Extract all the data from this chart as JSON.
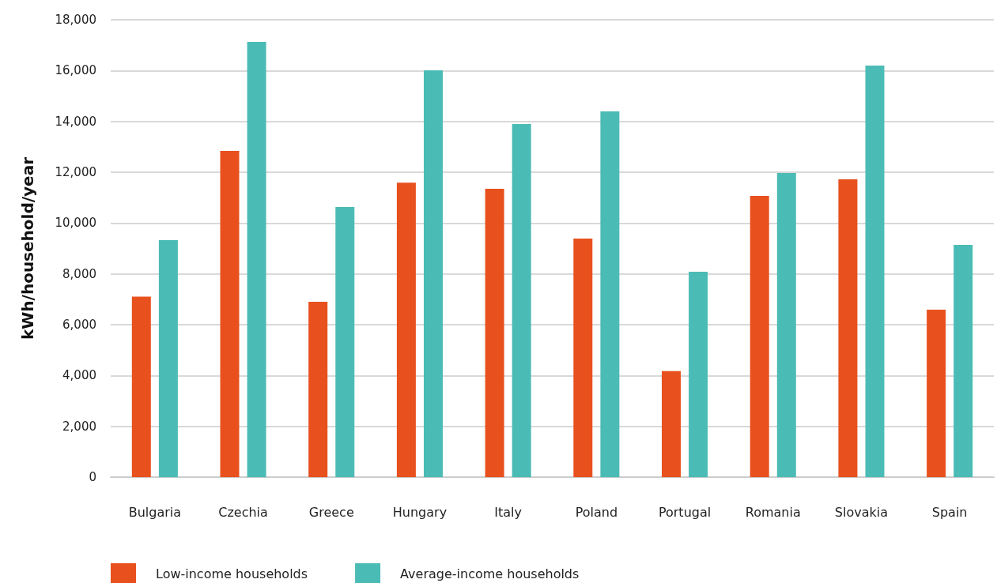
{
  "chart_data": {
    "type": "bar",
    "ylabel": "kWh/household/year",
    "categories": [
      "Bulgaria",
      "Czechia",
      "Greece",
      "Hungary",
      "Italy",
      "Poland",
      "Portugal",
      "Romania",
      "Slovakia",
      "Spain"
    ],
    "series": [
      {
        "name": "Low-income households",
        "color": "#e8501e",
        "values": [
          7100,
          12840,
          6900,
          11590,
          11350,
          9390,
          4170,
          11070,
          11720,
          6590
        ]
      },
      {
        "name": "Average-income households",
        "color": "#4bbbb5",
        "values": [
          9330,
          17130,
          10630,
          16010,
          13900,
          14390,
          8080,
          11970,
          16200,
          9140
        ]
      }
    ],
    "ylim": [
      0,
      18000
    ],
    "yticks": [
      0,
      {
        "value": 2000,
        "label": "2,000"
      },
      {
        "value": 4000,
        "label": "4,000"
      },
      {
        "value": 6000,
        "label": "6,000"
      },
      {
        "value": 8000,
        "label": "8,000"
      },
      {
        "value": 10000,
        "label": "10,000"
      },
      {
        "value": 12000,
        "label": "12,000"
      },
      {
        "value": 14000,
        "label": "14,000"
      },
      {
        "value": 16000,
        "label": "16,000"
      },
      {
        "value": 18000,
        "label": "18,000"
      }
    ],
    "grid": "y",
    "legend": "bottom left"
  }
}
